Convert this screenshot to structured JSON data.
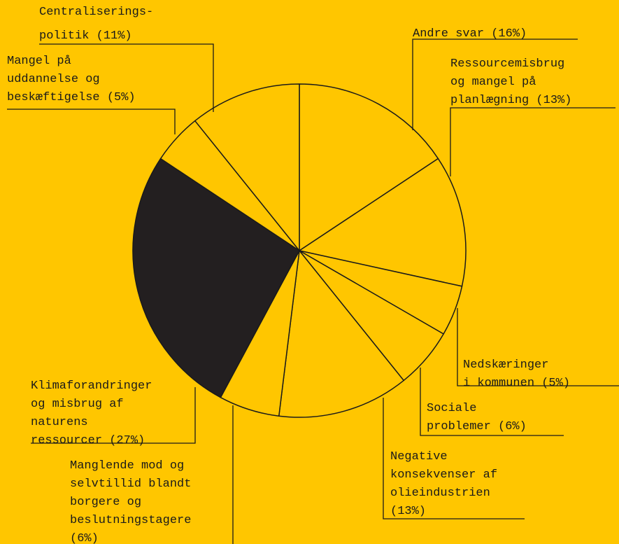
{
  "chart_data": {
    "type": "pie",
    "title": "",
    "slices": [
      {
        "label": "Andre svar (16%)",
        "lines": [
          "Andre svar (16%)"
        ],
        "value": 16
      },
      {
        "label": "Ressourcemisbrug og mangel på planlægning (13%)",
        "lines": [
          "Ressourcemisbrug",
          "og mangel på",
          "planlægning (13%)"
        ],
        "value": 13
      },
      {
        "label": "Nedskæringer i kommunen (5%)",
        "lines": [
          "Nedskæringer",
          "i kommunen (5%)"
        ],
        "value": 5
      },
      {
        "label": "Sociale problemer (6%)",
        "lines": [
          "Sociale",
          "problemer (6%)"
        ],
        "value": 6
      },
      {
        "label": "Negative konsekvenser af olieindustrien (13%)",
        "lines": [
          "Negative",
          "konsekvenser af",
          "olieindustrien",
          "(13%)"
        ],
        "value": 13
      },
      {
        "label": "Manglende mod og selvtillid blandt borgere og beslutningstagere (6%)",
        "lines": [
          "Manglende mod og",
          "selvtillid blandt",
          "borgere og",
          "beslutningstagere",
          "(6%)"
        ],
        "value": 6
      },
      {
        "label": "Klimaforandringer og misbrug af naturens ressourcer (27%)",
        "lines": [
          "Klimaforandringer",
          "og misbrug af",
          "naturens",
          "ressourcer (27%)"
        ],
        "value": 27,
        "highlight": true
      },
      {
        "label": "Mangel på uddannelse og beskæftigelse (5%)",
        "lines": [
          "Mangel på",
          "uddannelse og",
          "beskæftigelse (5%)"
        ],
        "value": 5
      },
      {
        "label": "Centraliseringspolitik (11%)",
        "lines": [
          "Centraliserings-",
          "politik (11%)"
        ],
        "value": 11
      }
    ],
    "colors": {
      "background": "#FFC600",
      "slice": "#FFC600",
      "highlight": "#231F20",
      "stroke": "#1a1a1a"
    }
  }
}
